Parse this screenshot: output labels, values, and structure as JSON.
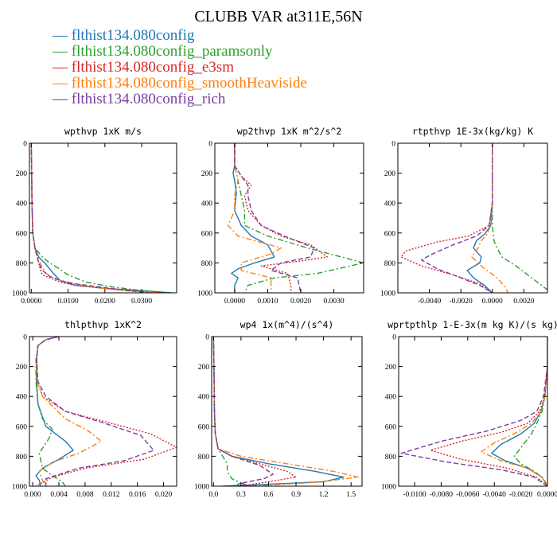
{
  "title": "CLUBB VAR at311E,56N",
  "legend": [
    {
      "label": "flthist134.080config",
      "color": "#1f77b4",
      "dash": "solid"
    },
    {
      "label": "flthist134.080config_paramsonly",
      "color": "#2ca02c",
      "dash": "dashdot"
    },
    {
      "label": "flthist134.080config_e3sm",
      "color": "#d62728",
      "dash": "dot"
    },
    {
      "label": "flthist134.080config_smoothHeaviside",
      "color": "#ff7f0e",
      "dash": "dashdot"
    },
    {
      "label": "flthist134.080config_rich",
      "color": "#7b3fa0",
      "dash": "dash"
    }
  ],
  "chart_data": [
    {
      "type": "line",
      "title": "wpthvp  1xK m/s",
      "xlim": [
        -0.0005,
        0.0395
      ],
      "ylim": [
        1000,
        0
      ],
      "xticks": [
        0,
        0.01,
        0.02,
        0.03
      ],
      "xticklabels": [
        "0.0000",
        "0.0100",
        "0.0200",
        "0.0300"
      ],
      "yticks": [
        0,
        200,
        400,
        600,
        800,
        1000
      ],
      "series": [
        {
          "x": [
            0,
            0.0001,
            0.0002,
            0.0004,
            0.001,
            0.002,
            0.004,
            0.005,
            0.006,
            0.008,
            0.012,
            0.02,
            0.03,
            0.038
          ],
          "y": [
            0,
            200,
            400,
            600,
            700,
            760,
            810,
            840,
            870,
            920,
            950,
            970,
            985,
            1000
          ]
        },
        {
          "x": [
            0,
            0.0001,
            0.0002,
            0.0004,
            0.001,
            0.003,
            0.005,
            0.007,
            0.01,
            0.015,
            0.022,
            0.03,
            0.038
          ],
          "y": [
            0,
            200,
            400,
            600,
            700,
            760,
            800,
            830,
            880,
            930,
            960,
            985,
            1000
          ]
        },
        {
          "x": [
            0,
            0.0001,
            0.0002,
            0.0004,
            0.001,
            0.002,
            0.0025,
            0.003,
            0.005,
            0.008,
            0.012,
            0.02,
            0.03,
            0.035
          ],
          "y": [
            0,
            200,
            400,
            600,
            700,
            800,
            850,
            880,
            900,
            930,
            950,
            970,
            990,
            1000
          ]
        },
        {
          "x": [
            0,
            0.0001,
            0.0002,
            0.0004,
            0.001,
            0.002,
            0.003,
            0.004,
            0.006,
            0.01,
            0.016,
            0.025,
            0.035
          ],
          "y": [
            0,
            200,
            400,
            600,
            700,
            780,
            830,
            870,
            900,
            930,
            960,
            985,
            1000
          ]
        },
        {
          "x": [
            0,
            0.0001,
            0.0002,
            0.0004,
            0.001,
            0.002,
            0.003,
            0.005,
            0.008,
            0.012,
            0.02,
            0.028,
            0.032
          ],
          "y": [
            0,
            200,
            400,
            600,
            700,
            800,
            850,
            890,
            920,
            940,
            965,
            990,
            1000
          ]
        }
      ]
    },
    {
      "type": "line",
      "title": "wp2thvp  1xK m^2/s^2",
      "xlim": [
        -0.0006,
        0.0039
      ],
      "ylim": [
        1000,
        0
      ],
      "xticks": [
        0,
        0.001,
        0.002,
        0.003
      ],
      "xticklabels": [
        "0.0000",
        "0.0010",
        "0.0020",
        "0.0030"
      ],
      "yticks": [
        0,
        200,
        400,
        600,
        800,
        1000
      ],
      "series": [
        {
          "x": [
            0,
            0,
            -5e-05,
            0,
            5e-05,
            0,
            0.0002,
            0.0005,
            0.001,
            0.0012,
            0.0006,
            0.0001,
            -0.0001,
            0.0001,
            0,
            0
          ],
          "y": [
            0,
            150,
            200,
            250,
            330,
            450,
            550,
            620,
            680,
            760,
            800,
            840,
            870,
            900,
            950,
            1000
          ]
        },
        {
          "x": [
            0,
            0,
            0.0001,
            0.0002,
            0.0003,
            0.0003,
            0.001,
            0.0022,
            0.0039,
            0.0025,
            0.0012,
            0.0004,
            0.0003
          ],
          "y": [
            0,
            150,
            250,
            350,
            450,
            550,
            620,
            700,
            800,
            870,
            900,
            950,
            1000
          ]
        },
        {
          "x": [
            0,
            0,
            0.0002,
            0.0005,
            0.0003,
            0.0004,
            0.0008,
            0.0014,
            0.0023,
            0.0028,
            0.0019,
            0.0008,
            0.0016,
            0.0017,
            0.0017
          ],
          "y": [
            0,
            150,
            220,
            280,
            350,
            450,
            550,
            620,
            680,
            760,
            790,
            820,
            870,
            950,
            1000
          ]
        },
        {
          "x": [
            0,
            0,
            0.0001,
            0,
            0,
            -0.0002,
            0.0001,
            0.0014,
            0.0011,
            0.0002,
            0.0002,
            0.0011,
            0.0011
          ],
          "y": [
            0,
            150,
            250,
            350,
            450,
            550,
            620,
            700,
            740,
            800,
            850,
            900,
            1000
          ]
        },
        {
          "x": [
            0,
            0,
            0.0002,
            0.0004,
            0.0004,
            0.0005,
            0.0008,
            0.0015,
            0.0024,
            0.0023,
            0.0014,
            0.0011,
            0.0019,
            0.002
          ],
          "y": [
            0,
            150,
            220,
            280,
            350,
            450,
            550,
            620,
            700,
            760,
            800,
            850,
            900,
            1000
          ]
        }
      ]
    },
    {
      "type": "line",
      "title": "rtpthvp  1E-3x(kg/kg) K",
      "xlim": [
        -0.006,
        0.0035
      ],
      "ylim": [
        1000,
        0
      ],
      "xticks": [
        -0.004,
        -0.002,
        0,
        0.002
      ],
      "xticklabels": [
        "-0.0040",
        "-0.0020",
        "0.0000",
        "0.0020"
      ],
      "yticks": [
        0,
        200,
        400,
        600,
        800,
        1000
      ],
      "series": [
        {
          "x": [
            0,
            0,
            0,
            -0.0001,
            -0.0005,
            -0.001,
            -0.0012,
            -0.0007,
            -0.0008,
            -0.0016,
            -0.0012,
            -0.0005,
            0
          ],
          "y": [
            0,
            200,
            400,
            550,
            610,
            650,
            700,
            760,
            800,
            850,
            900,
            950,
            1000
          ]
        },
        {
          "x": [
            0,
            0,
            0,
            0,
            0.0001,
            0.0003,
            0.0006,
            0.0015,
            0.0025,
            0.0035
          ],
          "y": [
            0,
            200,
            400,
            550,
            650,
            700,
            760,
            820,
            900,
            980
          ]
        },
        {
          "x": [
            0,
            0,
            0,
            -0.0002,
            -0.0015,
            -0.0035,
            -0.0055,
            -0.0058,
            -0.0045,
            -0.0025,
            -0.0008,
            0
          ],
          "y": [
            0,
            200,
            400,
            550,
            620,
            660,
            720,
            760,
            820,
            880,
            940,
            1000
          ]
        },
        {
          "x": [
            0,
            0,
            0,
            -0.0001,
            -0.0004,
            -0.0007,
            -0.0009,
            -0.0013,
            -0.0006,
            0.0003,
            0.0008,
            0.001
          ],
          "y": [
            0,
            200,
            400,
            550,
            620,
            650,
            700,
            760,
            830,
            900,
            960,
            1000
          ]
        },
        {
          "x": [
            0,
            0,
            0,
            -0.0002,
            -0.001,
            -0.0025,
            -0.0038,
            -0.0045,
            -0.0035,
            -0.002,
            -0.0008,
            0
          ],
          "y": [
            0,
            200,
            400,
            550,
            620,
            680,
            740,
            780,
            840,
            900,
            950,
            1000
          ]
        }
      ]
    },
    {
      "type": "line",
      "title": "thlpthvp  1xK^2",
      "xlim": [
        -0.0005,
        0.022
      ],
      "ylim": [
        1000,
        0
      ],
      "xticks": [
        0,
        0.004,
        0.008,
        0.012,
        0.016,
        0.02
      ],
      "xticklabels": [
        "0.000",
        "0.004",
        "0.008",
        "0.012",
        "0.016",
        "0.020"
      ],
      "yticks": [
        0,
        200,
        400,
        600,
        800,
        1000
      ],
      "series": [
        {
          "x": [
            0.004,
            0.002,
            0.0008,
            0.0006,
            0.0006,
            0.0008,
            0.002,
            0.005,
            0.0062,
            0.004,
            0.0015,
            0.0005,
            0.001,
            0.0012
          ],
          "y": [
            0,
            20,
            60,
            150,
            300,
            450,
            600,
            700,
            760,
            820,
            880,
            930,
            960,
            1000
          ]
        },
        {
          "x": [
            0.004,
            0.002,
            0.0008,
            0.0005,
            0.0005,
            0.0008,
            0.0015,
            0.003,
            0.0025,
            0.001,
            0.0015,
            0.003,
            0.0045,
            0.005
          ],
          "y": [
            0,
            20,
            60,
            150,
            300,
            450,
            550,
            620,
            680,
            780,
            880,
            930,
            970,
            1000
          ]
        },
        {
          "x": [
            0.004,
            0.002,
            0.0008,
            0.0006,
            0.0007,
            0.0015,
            0.005,
            0.012,
            0.018,
            0.022,
            0.017,
            0.008,
            0.003,
            0.0005
          ],
          "y": [
            0,
            20,
            60,
            150,
            300,
            400,
            500,
            580,
            650,
            740,
            820,
            880,
            940,
            1000
          ]
        },
        {
          "x": [
            0.004,
            0.002,
            0.0008,
            0.0006,
            0.0007,
            0.0015,
            0.005,
            0.0085,
            0.0105,
            0.007,
            0.003,
            0.001,
            0.0015,
            0.002
          ],
          "y": [
            0,
            20,
            60,
            150,
            300,
            400,
            550,
            630,
            700,
            780,
            840,
            900,
            960,
            1000
          ]
        },
        {
          "x": [
            0.004,
            0.002,
            0.0008,
            0.0006,
            0.0008,
            0.002,
            0.005,
            0.011,
            0.0165,
            0.0185,
            0.014,
            0.007,
            0.002,
            0.002
          ],
          "y": [
            0,
            20,
            60,
            150,
            300,
            400,
            500,
            580,
            660,
            760,
            830,
            880,
            950,
            1000
          ]
        }
      ]
    },
    {
      "type": "line",
      "title": "wp4  1x(m^4)/(s^4)",
      "xlim": [
        -0.02,
        1.62
      ],
      "ylim": [
        1000,
        0
      ],
      "xticks": [
        0,
        0.3,
        0.6,
        0.9,
        1.2,
        1.5
      ],
      "xticklabels": [
        "0.0",
        "0.3",
        "0.6",
        "0.9",
        "1.2",
        "1.5"
      ],
      "yticks": [
        0,
        200,
        400,
        600,
        800,
        1000
      ],
      "series": [
        {
          "x": [
            0,
            0.005,
            0.01,
            0.02,
            0.05,
            0.2,
            0.6,
            1.1,
            1.42,
            1.2,
            0.5,
            0.1
          ],
          "y": [
            0,
            200,
            500,
            650,
            750,
            800,
            850,
            900,
            940,
            970,
            990,
            1000
          ]
        },
        {
          "x": [
            0,
            0.005,
            0.01,
            0.02,
            0.05,
            0.1,
            0.15,
            0.15,
            0.2,
            0.3,
            0.2
          ],
          "y": [
            0,
            200,
            500,
            650,
            750,
            800,
            850,
            900,
            950,
            980,
            1000
          ]
        },
        {
          "x": [
            0,
            0.005,
            0.01,
            0.02,
            0.05,
            0.2,
            0.5,
            0.8,
            0.9,
            0.6,
            0.3
          ],
          "y": [
            0,
            200,
            500,
            650,
            750,
            800,
            850,
            900,
            940,
            970,
            1000
          ]
        },
        {
          "x": [
            0,
            0.005,
            0.01,
            0.02,
            0.05,
            0.3,
            0.8,
            1.3,
            1.58,
            1.1,
            0.4
          ],
          "y": [
            0,
            200,
            500,
            650,
            750,
            800,
            850,
            900,
            940,
            975,
            1000
          ]
        },
        {
          "x": [
            0,
            0.005,
            0.01,
            0.02,
            0.05,
            0.2,
            0.5,
            0.65,
            0.55,
            0.3,
            0.4
          ],
          "y": [
            0,
            200,
            500,
            650,
            750,
            800,
            860,
            920,
            950,
            980,
            1000
          ]
        }
      ]
    },
    {
      "type": "line",
      "title": "wprtpthlp  1-E-3x(m kg K)/(s kg)",
      "xlim": [
        -0.0112,
        0
      ],
      "ylim": [
        1000,
        0
      ],
      "xticks": [
        -0.01,
        -0.008,
        -0.006,
        -0.004,
        -0.002,
        0
      ],
      "xticklabels": [
        "-0.0100",
        "-0.0080",
        "-0.0060",
        "-0.0040",
        "-0.0020",
        "0.0000"
      ],
      "yticks": [
        0,
        200,
        400,
        600,
        800,
        1000
      ],
      "series": [
        {
          "x": [
            0,
            0,
            -0.0002,
            -0.0005,
            -0.001,
            -0.002,
            -0.0035,
            -0.0042,
            -0.0032,
            -0.0015,
            -0.0004,
            0
          ],
          "y": [
            0,
            200,
            400,
            500,
            580,
            650,
            720,
            780,
            830,
            880,
            940,
            1000
          ]
        },
        {
          "x": [
            0,
            0,
            -0.0002,
            -0.0004,
            -0.0008,
            -0.0012,
            -0.0018,
            -0.0025,
            -0.002,
            -0.001,
            -0.0003,
            0
          ],
          "y": [
            0,
            200,
            400,
            500,
            580,
            650,
            720,
            800,
            850,
            900,
            950,
            1000
          ]
        },
        {
          "x": [
            0,
            0,
            -0.0002,
            -0.0006,
            -0.0015,
            -0.0035,
            -0.0065,
            -0.0088,
            -0.0065,
            -0.003,
            -0.0008,
            0
          ],
          "y": [
            0,
            200,
            400,
            500,
            580,
            640,
            700,
            760,
            820,
            880,
            940,
            1000
          ]
        },
        {
          "x": [
            0,
            0,
            -0.0002,
            -0.0005,
            -0.0012,
            -0.0025,
            -0.004,
            -0.005,
            -0.0035,
            -0.0015,
            -0.0004,
            0
          ],
          "y": [
            0,
            200,
            400,
            500,
            580,
            650,
            710,
            770,
            830,
            880,
            940,
            1000
          ]
        },
        {
          "x": [
            0,
            0,
            -0.0003,
            -0.0008,
            -0.002,
            -0.0045,
            -0.008,
            -0.011,
            -0.0075,
            -0.0035,
            -0.001,
            0
          ],
          "y": [
            0,
            200,
            400,
            500,
            560,
            630,
            700,
            780,
            840,
            890,
            940,
            1000
          ]
        }
      ]
    }
  ]
}
